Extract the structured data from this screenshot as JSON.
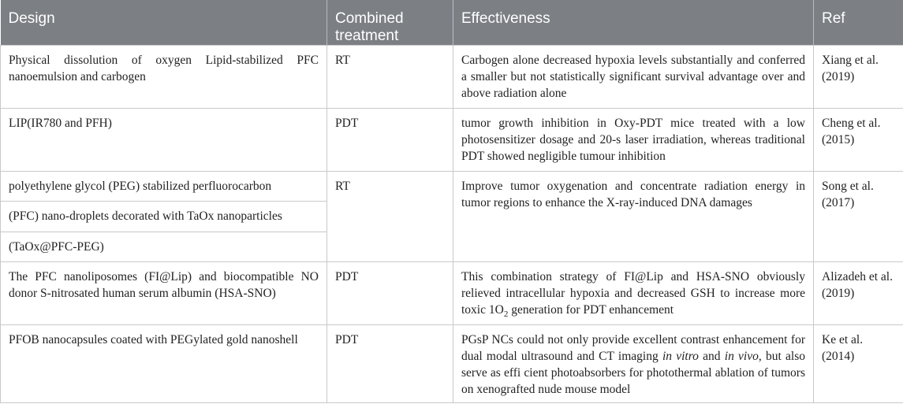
{
  "headers": {
    "design": "Design",
    "combined": "Combined treatment",
    "effectiveness": "Effectiveness",
    "ref": "Ref"
  },
  "rows": [
    {
      "design": "Physical dissolution of oxygen Lipid-stabilized PFC nanoemulsion and carbogen",
      "combined": "RT",
      "effectiveness": "Carbogen alone decreased hypoxia levels substantially and conferred a smaller but not statistically significant survival advantage over and above radiation alone",
      "ref": "Xiang et al. (2019)"
    },
    {
      "design": "LIP(IR780 and PFH)",
      "combined": "PDT",
      "effectiveness": "tumor growth inhibition in Oxy-PDT mice treated with a low photosensitizer dosage and 20-s laser irradiation, whereas traditional PDT showed negligible tumour inhibition",
      "ref": "Cheng et al. (2015)"
    },
    {
      "design_lines": [
        "polyethylene glycol (PEG) stabilized perfluorocarbon",
        "(PFC) nano-droplets decorated with TaOx nanoparticles",
        "(TaOx@PFC-PEG)"
      ],
      "combined": "RT",
      "effectiveness": "Improve tumor oxygenation and concentrate radiation energy in tumor regions to enhance the X-ray-induced DNA damages",
      "ref": "Song et al. (2017)"
    },
    {
      "design": "The PFC nanoliposomes (FI@Lip) and biocompatible NO donor S-nitrosated human serum albumin (HSA-SNO)",
      "combined": "PDT",
      "effectiveness_pre": "This combination strategy of FI@Lip and HSA-SNO obviously relieved intracellular hypoxia and decreased GSH to increase more toxic 1O",
      "effectiveness_sub": "2",
      "effectiveness_post": " generation for PDT enhancement",
      "ref": "Alizadeh et al. (2019)"
    },
    {
      "design": "PFOB nanocapsules coated with PEGylated gold nanoshell",
      "combined": "PDT",
      "effectiveness_parts": {
        "a": "PGsP NCs could not only provide excellent contrast enhancement for dual modal ultrasound and CT imaging ",
        "b": "in vitro",
        "c": " and ",
        "d": "in vivo",
        "e": ", but also serve as effi cient photoabsorbers for photothermal ablation of tumors on xenografted nude mouse model"
      },
      "ref": "Ke et al. (2014)"
    }
  ]
}
